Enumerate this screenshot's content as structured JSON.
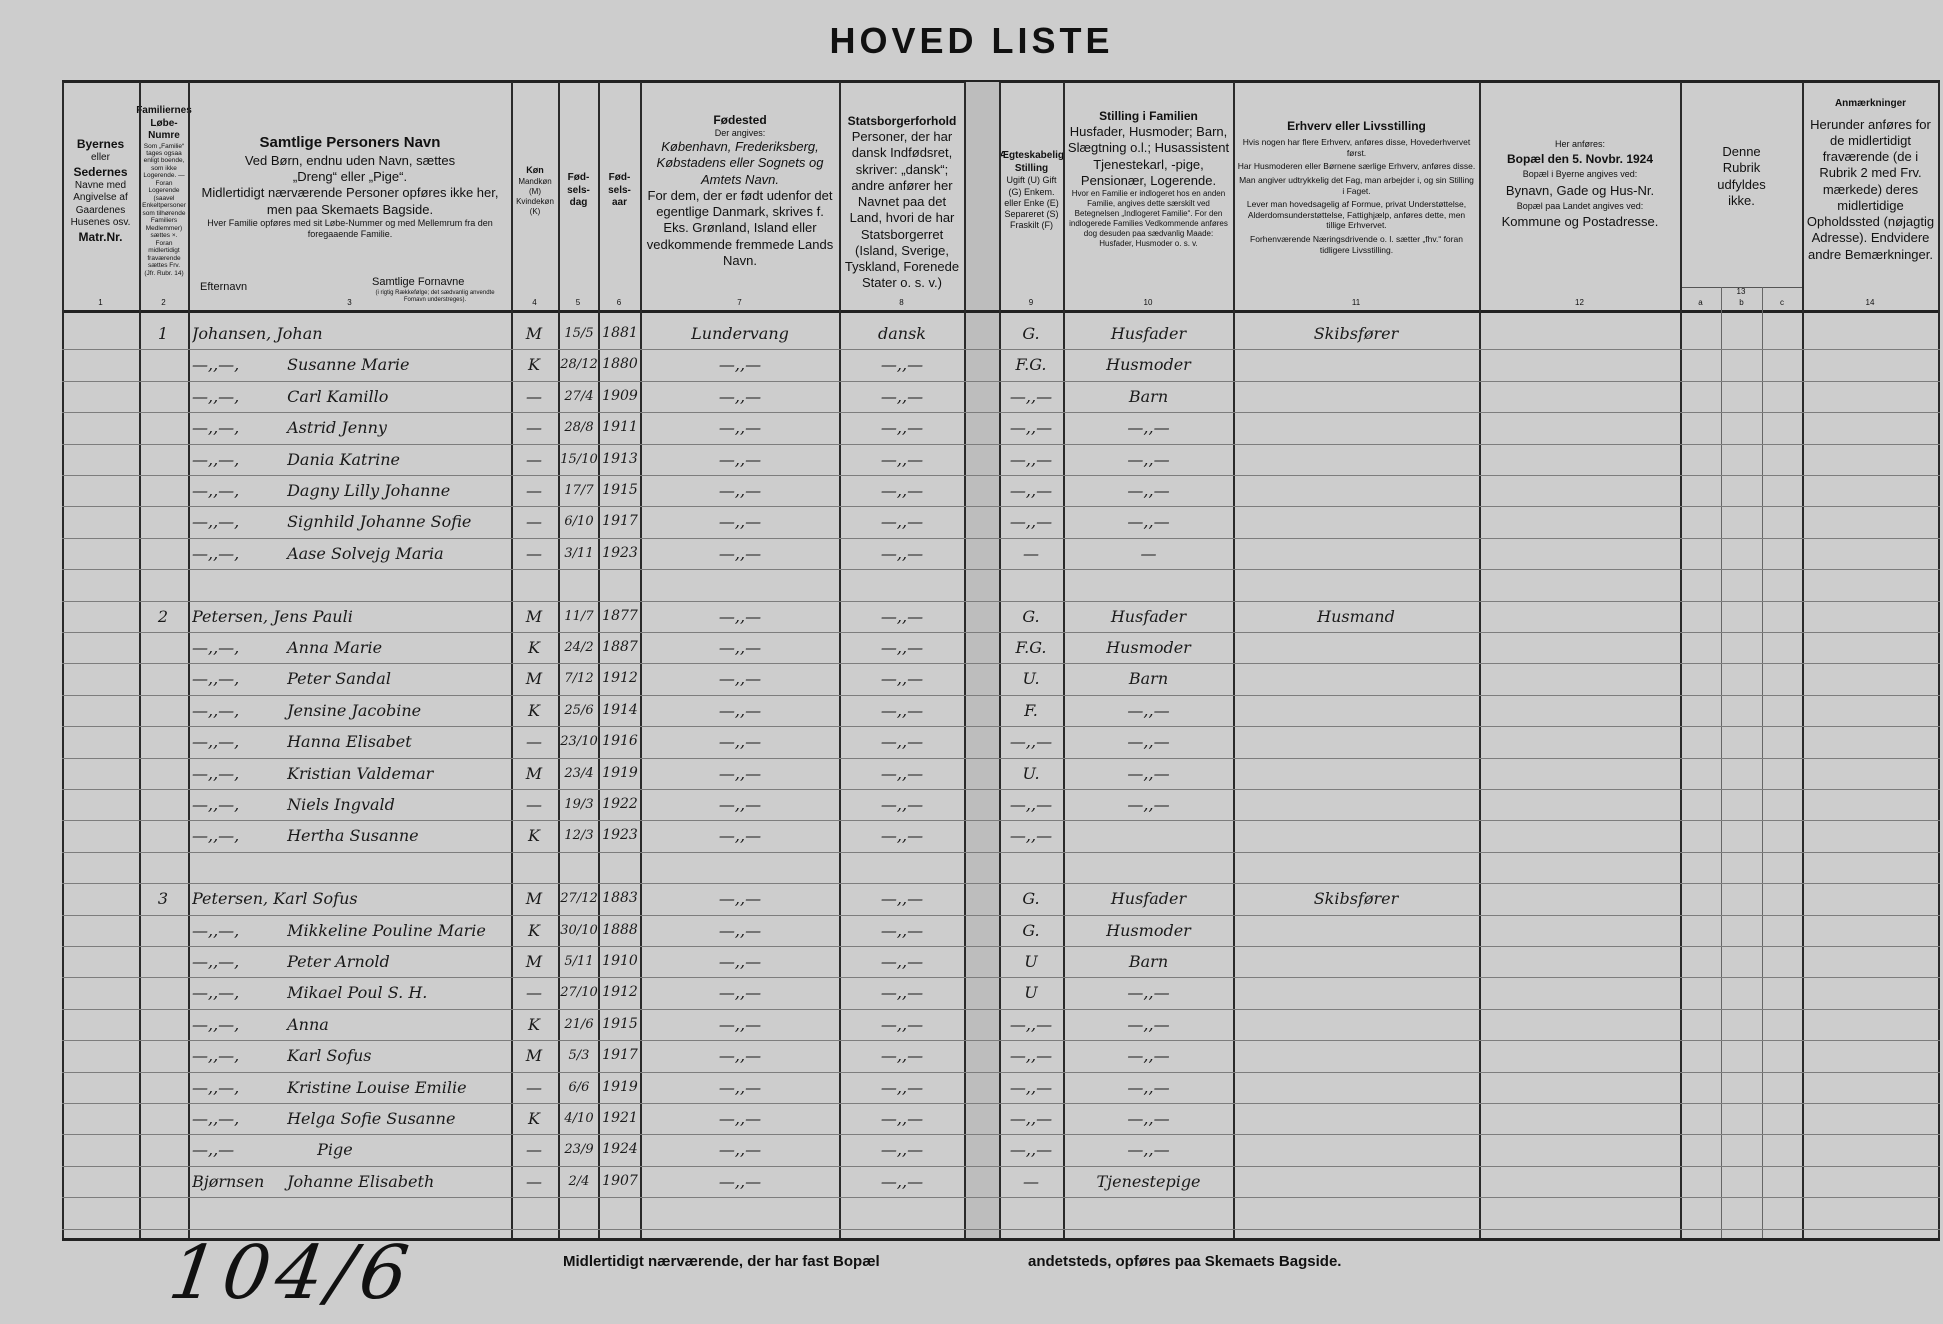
{
  "title": "HOVED LISTE",
  "headers": {
    "c1": {
      "lines": [
        "Byernes",
        "eller",
        "Sedernes",
        "Navne med",
        "Angivelse af",
        "Gaardenes",
        "Husenes osv.",
        "Matr.Nr."
      ],
      "num": "1"
    },
    "c2": {
      "title": "Familiernes Løbe-Numre",
      "text": "Som „Familie“ tages ogsaa enligt boende, som ikke Logerende. — Foran Logerende (saavel Enkeltpersoner som tilhørende Familiers Medlemmer) sættes ×. Foran midlertidigt fraværende sættes Frv. (Jfr. Rubr. 14)",
      "num": "2"
    },
    "c3": {
      "title": "Samtlige Personers Navn",
      "l1": "Ved Børn, endnu uden Navn, sættes",
      "l2": "„Dreng“ eller „Pige“.",
      "l3": "Midlertidigt nærværende Personer opføres ikke her,",
      "l4": "men paa Skemaets Bagside.",
      "l5": "Hver Familie opføres med sit Løbe-Nummer og med Mellemrum fra den foregaaende Familie.",
      "surname": "Efternavn",
      "given": "Samtlige Fornavne",
      "given_note": "(i rigtig Rækkefølge; det sædvanlig anvendte Fornavn understreges).",
      "num": "3"
    },
    "c4": {
      "title": "Køn",
      "text": "Mandkøn (M) Kvindekøn (K)",
      "num": "4"
    },
    "c5": {
      "title": "Fød-sels-dag",
      "num": "5"
    },
    "c6": {
      "title": "Fød-sels-aar",
      "num": "6"
    },
    "c7": {
      "title": "Fødested",
      "l1": "Der angives:",
      "l2": "København, Frederiksberg, Købstadens eller Sognets og Amtets Navn.",
      "l3": "For dem, der er født udenfor det egentlige Danmark, skrives f. Eks. Grønland, Island eller vedkommende fremmede Lands Navn.",
      "num": "7"
    },
    "c8": {
      "title": "Statsborgerforhold",
      "text": "Personer, der har dansk Indfødsret, skriver: „dansk“; andre anfører her Navnet paa det Land, hvori de har Statsborgerret (Island, Sverige, Tyskland, Forenede Stater o. s. v.)",
      "num": "8"
    },
    "c9": {
      "title": "Ægteskabelig Stilling",
      "text": "Ugift (U) Gift (G) Enkem. eller Enke (E) Separeret (S) Fraskilt (F)",
      "num": "9"
    },
    "c10": {
      "title": "Stilling i Familien",
      "l1": "Husfader, Husmoder; Barn, Slægtning o.l.; Husassistent Tjenestekarl, -pige, Pensionær, Logerende.",
      "l2": "Hvor en Familie er indlogeret hos en anden Familie, angives dette særskilt ved Betegnelsen „Indlogeret Familie“. For den indlogerede Families Vedkommende anføres dog desuden paa sædvanlig Maade: Husfader, Husmoder o. s. v.",
      "num": "10"
    },
    "c11": {
      "title": "Erhverv eller Livsstilling",
      "l1": "Hvis nogen har flere Erhverv, anføres disse, Hovederhvervet først.",
      "l2": "Har Husmoderen eller Børnene særlige Erhverv, anføres disse.",
      "l3": "Man angiver udtrykkelig det Fag, man arbejder i, og sin Stilling i Faget.",
      "l4": "Lever man hovedsagelig af Formue, privat Understøttelse, Alderdomsunderstøttelse, Fattighjælp, anføres dette, men tillige Erhvervet.",
      "l5": "Forhenværende Næringsdrivende o. l. sætter „fhv.“ foran tidligere Livsstilling.",
      "num": "11"
    },
    "c12": {
      "l1": "Her anføres:",
      "title": "Bopæl den 5. Novbr. 1924",
      "l2": "Bopæl i Byerne angives ved:",
      "l3": "Bynavn, Gade og Hus-Nr.",
      "l4": "Bopæl paa Landet angives ved:",
      "l5": "Kommune og Postadresse.",
      "num": "12"
    },
    "c13": {
      "text": "Denne Rubrik udfyldes ikke.",
      "num": "13",
      "a": "a",
      "b": "b",
      "c": "c"
    },
    "c14": {
      "title": "Anmærkninger",
      "text": "Herunder anføres for de midlertidigt fraværende (de i Rubrik 2 med Frv. mærkede) deres midlertidige Opholdssted (nøjagtig Adresse). Endvidere andre Bemærkninger.",
      "num": "14"
    }
  },
  "families": [
    {
      "number": "1",
      "persons": [
        {
          "surname": "Johansen,",
          "given": "Johan",
          "sex": "M",
          "day": "15/5",
          "year": "1881",
          "birthplace": "Lundervang",
          "citizenship": "dansk",
          "marital": "G.",
          "position": "Husfader",
          "occupation": "Skibsfører"
        },
        {
          "surname": "—,,—,",
          "given": "Susanne Marie",
          "sex": "K",
          "day": "28/12",
          "year": "1880",
          "birthplace": "—,,—",
          "citizenship": "—,,—",
          "marital": "F.G.",
          "position": "Husmoder",
          "occupation": ""
        },
        {
          "surname": "—,,—,",
          "given": "Carl Kamillo",
          "sex": "—",
          "day": "27/4",
          "year": "1909",
          "birthplace": "—,,—",
          "citizenship": "—,,—",
          "marital": "—,,—",
          "position": "Barn",
          "occupation": ""
        },
        {
          "surname": "—,,—,",
          "given": "Astrid Jenny",
          "sex": "—",
          "day": "28/8",
          "year": "1911",
          "birthplace": "—,,—",
          "citizenship": "—,,—",
          "marital": "—,,—",
          "position": "—,,—",
          "occupation": ""
        },
        {
          "surname": "—,,—,",
          "given": "Dania Katrine",
          "sex": "—",
          "day": "15/10",
          "year": "1913",
          "birthplace": "—,,—",
          "citizenship": "—,,—",
          "marital": "—,,—",
          "position": "—,,—",
          "occupation": ""
        },
        {
          "surname": "—,,—,",
          "given": "Dagny Lilly Johanne",
          "sex": "—",
          "day": "17/7",
          "year": "1915",
          "birthplace": "—,,—",
          "citizenship": "—,,—",
          "marital": "—,,—",
          "position": "—,,—",
          "occupation": ""
        },
        {
          "surname": "—,,—,",
          "given": "Signhild Johanne Sofie",
          "sex": "—",
          "day": "6/10",
          "year": "1917",
          "birthplace": "—,,—",
          "citizenship": "—,,—",
          "marital": "—,,—",
          "position": "—,,—",
          "occupation": ""
        },
        {
          "surname": "—,,—,",
          "given": "Aase Solvejg Maria",
          "sex": "—",
          "day": "3/11",
          "year": "1923",
          "birthplace": "—,,—",
          "citizenship": "—,,—",
          "marital": "—",
          "position": "—",
          "occupation": ""
        }
      ]
    },
    {
      "number": "2",
      "persons": [
        {
          "surname": "Petersen,",
          "given": "Jens Pauli",
          "sex": "M",
          "day": "11/7",
          "year": "1877",
          "birthplace": "—,,—",
          "citizenship": "—,,—",
          "marital": "G.",
          "position": "Husfader",
          "occupation": "Husmand"
        },
        {
          "surname": "—,,—,",
          "given": "Anna Marie",
          "sex": "K",
          "day": "24/2",
          "year": "1887",
          "birthplace": "—,,—",
          "citizenship": "—,,—",
          "marital": "F.G.",
          "position": "Husmoder",
          "occupation": ""
        },
        {
          "surname": "—,,—,",
          "given": "Peter Sandal",
          "sex": "M",
          "day": "7/12",
          "year": "1912",
          "birthplace": "—,,—",
          "citizenship": "—,,—",
          "marital": "U.",
          "position": "Barn",
          "occupation": ""
        },
        {
          "surname": "—,,—,",
          "given": "Jensine Jacobine",
          "sex": "K",
          "day": "25/6",
          "year": "1914",
          "birthplace": "—,,—",
          "citizenship": "—,,—",
          "marital": "F.",
          "position": "—,,—",
          "occupation": ""
        },
        {
          "surname": "—,,—,",
          "given": "Hanna Elisabet",
          "sex": "—",
          "day": "23/10",
          "year": "1916",
          "birthplace": "—,,—",
          "citizenship": "—,,—",
          "marital": "—,,—",
          "position": "—,,—",
          "occupation": ""
        },
        {
          "surname": "—,,—,",
          "given": "Kristian Valdemar",
          "sex": "M",
          "day": "23/4",
          "year": "1919",
          "birthplace": "—,,—",
          "citizenship": "—,,—",
          "marital": "U.",
          "position": "—,,—",
          "occupation": ""
        },
        {
          "surname": "—,,—,",
          "given": "Niels Ingvald",
          "sex": "—",
          "day": "19/3",
          "year": "1922",
          "birthplace": "—,,—",
          "citizenship": "—,,—",
          "marital": "—,,—",
          "position": "—,,—",
          "occupation": ""
        },
        {
          "surname": "—,,—,",
          "given": "Hertha Susanne",
          "sex": "K",
          "day": "12/3",
          "year": "1923",
          "birthplace": "—,,—",
          "citizenship": "—,,—",
          "marital": "—,,—",
          "position": "",
          "occupation": ""
        }
      ]
    },
    {
      "number": "3",
      "persons": [
        {
          "surname": "Petersen,",
          "given": "Karl Sofus",
          "sex": "M",
          "day": "27/12",
          "year": "1883",
          "birthplace": "—,,—",
          "citizenship": "—,,—",
          "marital": "G.",
          "position": "Husfader",
          "occupation": "Skibsfører"
        },
        {
          "surname": "—,,—,",
          "given": "Mikkeline Pouline Marie",
          "sex": "K",
          "day": "30/10",
          "year": "1888",
          "birthplace": "—,,—",
          "citizenship": "—,,—",
          "marital": "G.",
          "position": "Husmoder",
          "occupation": ""
        },
        {
          "surname": "—,,—,",
          "given": "Peter Arnold",
          "sex": "M",
          "day": "5/11",
          "year": "1910",
          "birthplace": "—,,—",
          "citizenship": "—,,—",
          "marital": "U",
          "position": "Barn",
          "occupation": ""
        },
        {
          "surname": "—,,—,",
          "given": "Mikael Poul S. H.",
          "sex": "—",
          "day": "27/10",
          "year": "1912",
          "birthplace": "—,,—",
          "citizenship": "—,,—",
          "marital": "U",
          "position": "—,,—",
          "occupation": ""
        },
        {
          "surname": "—,,—,",
          "given": "Anna",
          "sex": "K",
          "day": "21/6",
          "year": "1915",
          "birthplace": "—,,—",
          "citizenship": "—,,—",
          "marital": "—,,—",
          "position": "—,,—",
          "occupation": ""
        },
        {
          "surname": "—,,—,",
          "given": "Karl Sofus",
          "sex": "M",
          "day": "5/3",
          "year": "1917",
          "birthplace": "—,,—",
          "citizenship": "—,,—",
          "marital": "—,,—",
          "position": "—,,—",
          "occupation": ""
        },
        {
          "surname": "—,,—,",
          "given": "Kristine Louise Emilie",
          "sex": "—",
          "day": "6/6",
          "year": "1919",
          "birthplace": "—,,—",
          "citizenship": "—,,—",
          "marital": "—,,—",
          "position": "—,,—",
          "occupation": ""
        },
        {
          "surname": "—,,—,",
          "given": "Helga Sofie Susanne",
          "sex": "K",
          "day": "4/10",
          "year": "1921",
          "birthplace": "—,,—",
          "citizenship": "—,,—",
          "marital": "—,,—",
          "position": "—,,—",
          "occupation": ""
        },
        {
          "surname": "—,,—",
          "given": "Pige",
          "sex": "—",
          "day": "23/9",
          "year": "1924",
          "birthplace": "—,,—",
          "citizenship": "—,,—",
          "marital": "—,,—",
          "position": "—,,—",
          "occupation": ""
        },
        {
          "surname": "Bjørnsen",
          "given": "Johanne Elisabeth",
          "sex": "—",
          "day": "2/4",
          "year": "1907",
          "birthplace": "—,,—",
          "citizenship": "—,,—",
          "marital": "—",
          "position": "Tjenestepige",
          "occupation": ""
        }
      ]
    }
  ],
  "footer": {
    "part1": "Midlertidigt nærværende, der har fast Bopæl",
    "part2": "andetsteds, opføres paa Skemaets Bagside."
  },
  "archive_number": "104/6"
}
